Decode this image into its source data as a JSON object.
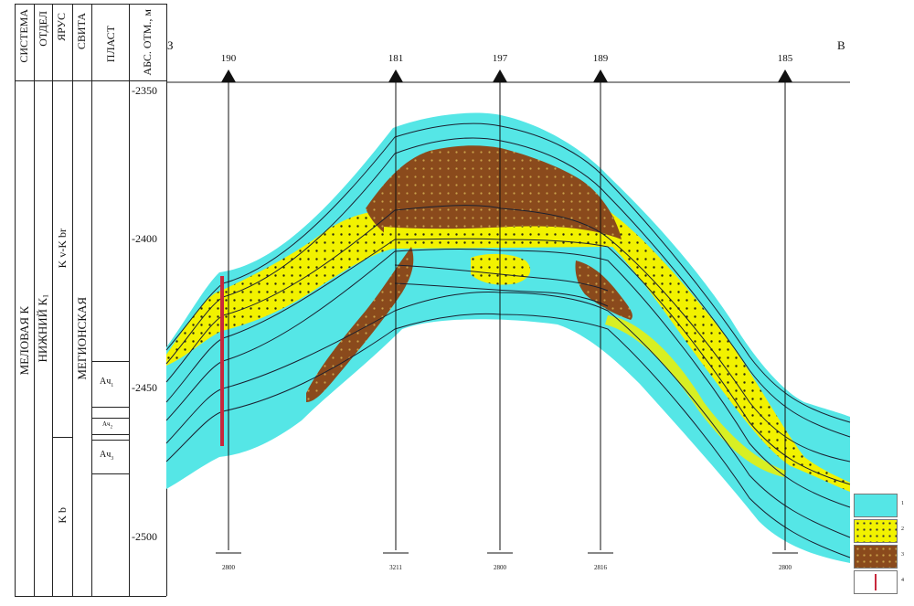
{
  "columns": {
    "system": "СИСТЕМА",
    "dept": "ОТДЕЛ",
    "stage": "ЯРУС",
    "suite": "СВИТА",
    "layer": "ПЛАСТ",
    "depth": "АБС. ОТМ., м"
  },
  "strat": {
    "system": "МЕЛОВАЯ К",
    "dept": "НИЖНИЙ К",
    "dept_sub": "1",
    "suite": "МЕГИОНСКАЯ",
    "stage_upper": "K v-K br",
    "stage_lower": "K b"
  },
  "layers": [
    {
      "label": "Ач",
      "sub": "1"
    },
    {
      "label": "Ач",
      "sub": "2"
    },
    {
      "label": "Ач",
      "sub": "3"
    }
  ],
  "depth_ticks": [
    "-2350",
    "-2400",
    "-2450",
    "-2500"
  ],
  "directions": {
    "west": "З",
    "east": "В"
  },
  "wells": [
    {
      "id": "190",
      "depth": "2800"
    },
    {
      "id": "181",
      "depth": "3211"
    },
    {
      "id": "197",
      "depth": "2800"
    },
    {
      "id": "189",
      "depth": "2816"
    },
    {
      "id": "185",
      "depth": "2800"
    }
  ],
  "legend": [
    {
      "num": "1",
      "color": "#55e6e6",
      "kind": "cyan"
    },
    {
      "num": "2",
      "color": "#f2f200",
      "kind": "yellow-dots"
    },
    {
      "num": "3",
      "color": "#8a4a1c",
      "kind": "brown-dots"
    },
    {
      "num": "4",
      "color": "#c8283c",
      "kind": "red-bar"
    }
  ],
  "colors": {
    "cyan": "#55e6e6",
    "yellow": "#f0f000",
    "brown": "#8a4a1c",
    "red": "#c8283c",
    "line": "#1a2030"
  }
}
